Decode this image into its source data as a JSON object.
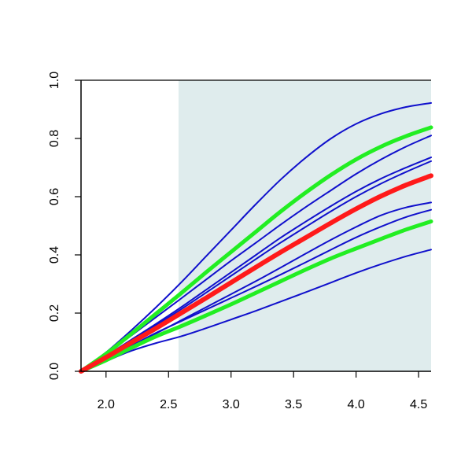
{
  "chart_data": {
    "type": "line",
    "title": "",
    "xlabel": "",
    "ylabel": "",
    "xlim": [
      1.8,
      4.6
    ],
    "ylim": [
      0.0,
      1.0
    ],
    "x_ticks": [
      2.0,
      2.5,
      3.0,
      3.5,
      4.0,
      4.5
    ],
    "x_tick_labels": [
      "2.0",
      "2.5",
      "3.0",
      "3.5",
      "4.0",
      "4.5"
    ],
    "y_ticks": [
      0.0,
      0.2,
      0.4,
      0.6,
      0.8,
      1.0
    ],
    "y_tick_labels": [
      "0.0",
      "0.2",
      "0.4",
      "0.6",
      "0.8",
      "1.0"
    ],
    "shaded_region": {
      "x_start": 2.58,
      "x_end": 4.6,
      "color": "#dfeced"
    },
    "grid": false,
    "legend": "none",
    "x": [
      1.8,
      2.0,
      2.2,
      2.4,
      2.6,
      2.8,
      3.0,
      3.2,
      3.4,
      3.6,
      3.8,
      4.0,
      4.2,
      4.4,
      4.6
    ],
    "series": [
      {
        "color": "#1010cc",
        "width": 2,
        "values": [
          0.0,
          0.065,
          0.14,
          0.22,
          0.305,
          0.395,
          0.485,
          0.575,
          0.66,
          0.735,
          0.8,
          0.85,
          0.885,
          0.908,
          0.922
        ]
      },
      {
        "color": "#1010cc",
        "width": 2,
        "values": [
          0.0,
          0.058,
          0.122,
          0.186,
          0.25,
          0.315,
          0.38,
          0.442,
          0.505,
          0.565,
          0.622,
          0.678,
          0.728,
          0.772,
          0.81
        ]
      },
      {
        "color": "#1010cc",
        "width": 2,
        "values": [
          0.0,
          0.053,
          0.108,
          0.163,
          0.22,
          0.28,
          0.34,
          0.4,
          0.46,
          0.515,
          0.568,
          0.618,
          0.662,
          0.7,
          0.735
        ]
      },
      {
        "color": "#1010cc",
        "width": 2,
        "values": [
          0.0,
          0.05,
          0.103,
          0.158,
          0.213,
          0.27,
          0.328,
          0.386,
          0.443,
          0.497,
          0.55,
          0.6,
          0.645,
          0.685,
          0.722
        ]
      },
      {
        "color": "#1010cc",
        "width": 2,
        "values": [
          0.0,
          0.04,
          0.085,
          0.13,
          0.175,
          0.22,
          0.265,
          0.31,
          0.357,
          0.405,
          0.452,
          0.496,
          0.536,
          0.563,
          0.58
        ]
      },
      {
        "color": "#1010cc",
        "width": 2,
        "values": [
          0.0,
          0.042,
          0.087,
          0.132,
          0.172,
          0.212,
          0.252,
          0.292,
          0.333,
          0.375,
          0.418,
          0.46,
          0.497,
          0.53,
          0.555
        ]
      },
      {
        "color": "#1010cc",
        "width": 2,
        "values": [
          0.0,
          0.035,
          0.07,
          0.097,
          0.12,
          0.148,
          0.178,
          0.208,
          0.24,
          0.272,
          0.305,
          0.338,
          0.368,
          0.395,
          0.418
        ]
      },
      {
        "color": "#22ee22",
        "width": 5,
        "values": [
          0.0,
          0.06,
          0.128,
          0.198,
          0.268,
          0.34,
          0.41,
          0.48,
          0.55,
          0.615,
          0.675,
          0.728,
          0.772,
          0.808,
          0.838
        ]
      },
      {
        "color": "#22ee22",
        "width": 5,
        "values": [
          0.0,
          0.038,
          0.08,
          0.12,
          0.155,
          0.192,
          0.23,
          0.27,
          0.31,
          0.35,
          0.388,
          0.422,
          0.455,
          0.487,
          0.515
        ]
      },
      {
        "color": "#ff1a1a",
        "width": 6,
        "values": [
          0.0,
          0.048,
          0.098,
          0.148,
          0.2,
          0.252,
          0.305,
          0.358,
          0.41,
          0.46,
          0.51,
          0.558,
          0.602,
          0.64,
          0.672
        ]
      }
    ]
  }
}
